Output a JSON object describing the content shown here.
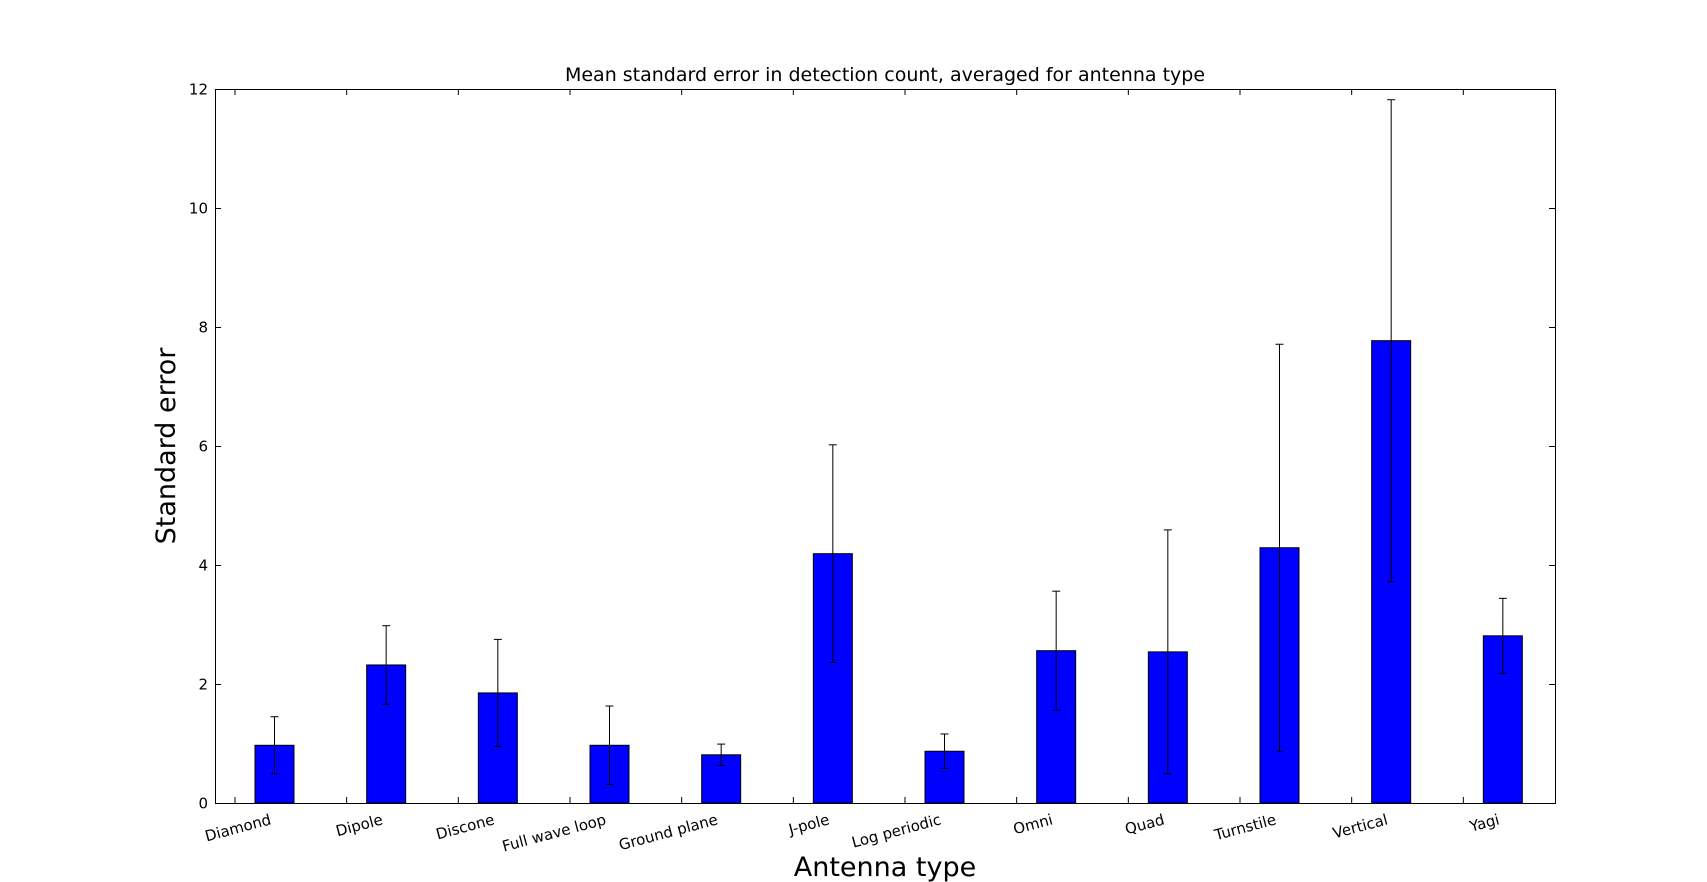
{
  "chart_data": {
    "type": "bar",
    "title": "Mean standard error in detection count, averaged for antenna type",
    "xlabel": "Antenna type",
    "ylabel": "Standard error",
    "categories": [
      "Diamond",
      "Dipole",
      "Discone",
      "Full wave loop",
      "Ground plane",
      "J-pole",
      "Log periodic",
      "Omni",
      "Quad",
      "Turnstile",
      "Vertical",
      "Yagi"
    ],
    "values": [
      0.97,
      2.32,
      1.85,
      0.97,
      0.81,
      4.19,
      0.87,
      2.56,
      2.54,
      4.29,
      7.77,
      2.81
    ],
    "errors": [
      0.48,
      0.66,
      0.9,
      0.66,
      0.18,
      1.83,
      0.29,
      1.0,
      2.05,
      3.42,
      4.05,
      0.63
    ],
    "ylim": [
      0,
      12
    ],
    "yticks": [
      0,
      2,
      4,
      6,
      8,
      10,
      12
    ],
    "grid": false,
    "bar_color": "#0000ff",
    "edge_color": "#000000",
    "error_color": "#000000"
  }
}
